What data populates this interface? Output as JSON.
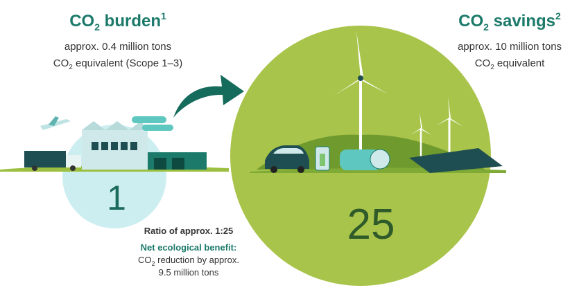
{
  "burden": {
    "title": [
      "CO",
      "2",
      " burden",
      "1"
    ],
    "line1": "approx. 0.4 million tons",
    "line2": [
      "CO",
      "2",
      " equivalent (Scope 1–3)"
    ],
    "number": 1
  },
  "savings": {
    "title": [
      "CO",
      "2",
      " savings",
      "2"
    ],
    "line1": "approx. 10 million tons",
    "line2": [
      "CO",
      "2",
      " equivalent"
    ],
    "number": 25
  },
  "note": {
    "ratio": "Ratio of approx. 1:25",
    "heading": "Net ecological benefit:",
    "line1": [
      "CO",
      "2",
      " reduction by approx."
    ],
    "line2": "9.5 million tons"
  }
}
